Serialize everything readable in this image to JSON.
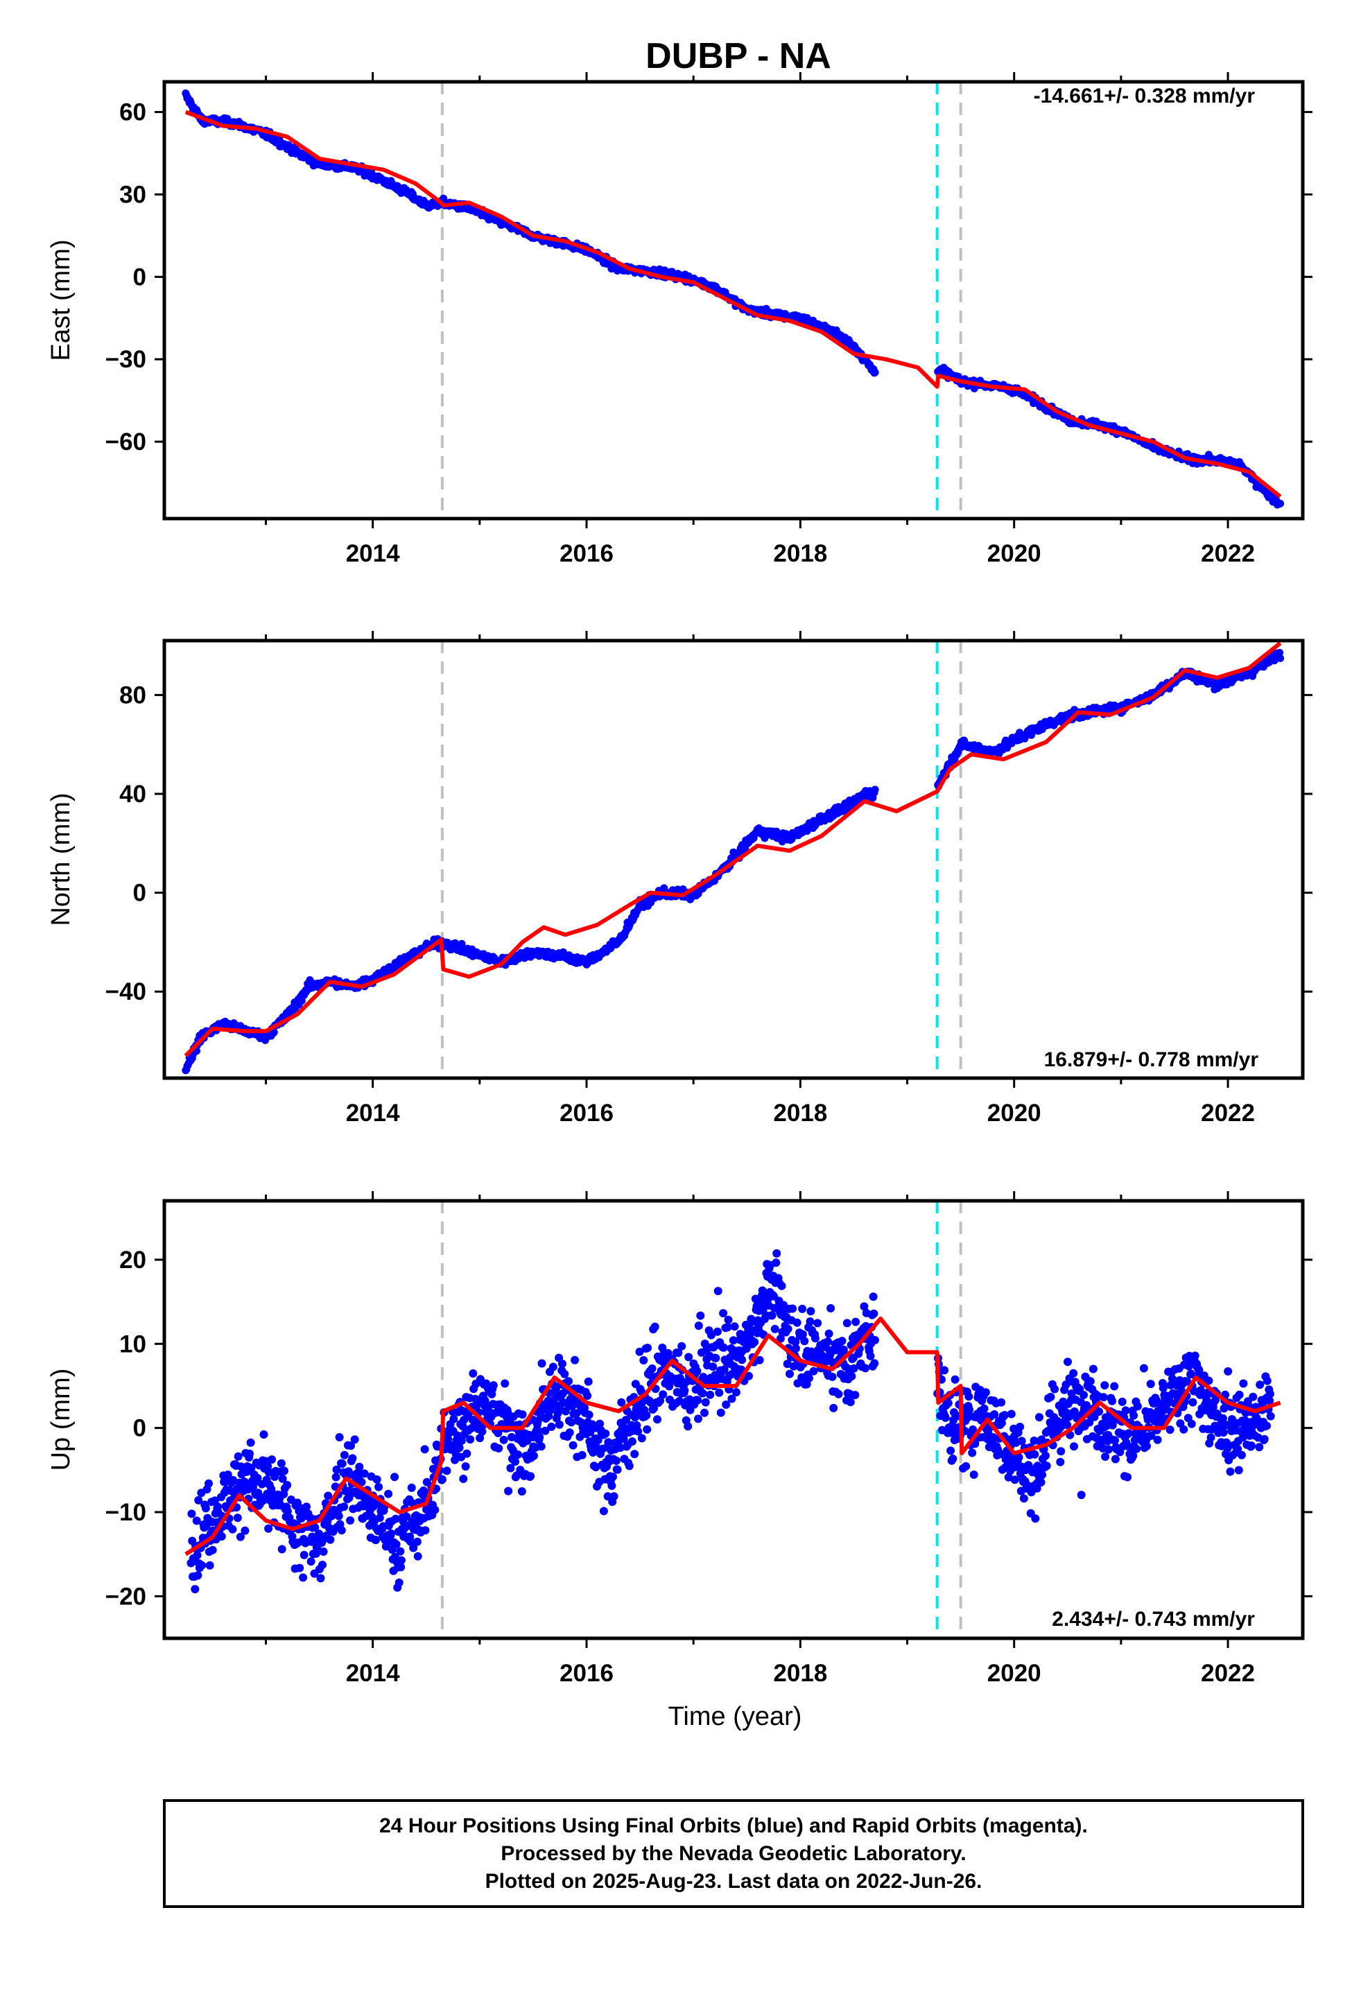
{
  "chart_title": "DUBP - NA",
  "xlabel": "Time (year)",
  "footer": {
    "line1": "24 Hour Positions Using Final Orbits (blue) and Rapid Orbits (magenta).",
    "line2": "Processed by the Nevada Geodetic Laboratory.",
    "line3": "Plotted on 2025-Aug-23. Last data on 2022-Jun-26."
  },
  "colors": {
    "data": "#0000ff",
    "model": "#ff0000",
    "equipment_change": "#c0c0c0",
    "earthquake": "#00e5ee",
    "frame": "#000000"
  },
  "chart_data": [
    {
      "type": "scatter",
      "component": "east",
      "ylabel": "East (mm)",
      "rate_label": "-14.661+/- 0.328 mm/yr",
      "xlim": [
        2012.05,
        2022.7
      ],
      "ylim": [
        -88,
        71
      ],
      "xticks": [
        2014,
        2016,
        2018,
        2020,
        2022
      ],
      "xtick_labels": [
        "2014",
        "2016",
        "2018",
        "2020",
        "2022"
      ],
      "yticks": [
        60,
        30,
        0,
        -30,
        -60
      ],
      "ytick_labels": [
        "60",
        "30",
        "0",
        "−30",
        "−60"
      ],
      "gaps": [
        [
          2018.7,
          2019.28
        ]
      ],
      "data_x": [
        2012.25,
        2012.4,
        2012.7,
        2013.0,
        2013.3,
        2013.5,
        2013.8,
        2014.0,
        2014.3,
        2014.5,
        2014.65,
        2014.9,
        2015.2,
        2015.5,
        2015.8,
        2016.0,
        2016.3,
        2016.6,
        2016.9,
        2017.2,
        2017.5,
        2017.8,
        2018.0,
        2018.3,
        2018.5,
        2018.7,
        2019.28,
        2019.5,
        2019.7,
        2020.0,
        2020.3,
        2020.5,
        2020.8,
        2021.0,
        2021.3,
        2021.6,
        2021.9,
        2022.1,
        2022.3,
        2022.49
      ],
      "data_y": [
        66,
        57,
        56,
        52,
        45,
        41,
        40,
        37,
        31,
        26,
        27,
        25,
        20,
        15,
        12,
        10,
        3,
        2,
        0,
        -4,
        -12,
        -14,
        -15,
        -20,
        -25,
        -35,
        -33,
        -38,
        -39,
        -41,
        -47,
        -52,
        -54,
        -56,
        -62,
        -66,
        -67,
        -68,
        -76,
        -83
      ],
      "model_x": [
        2012.25,
        2012.6,
        2012.9,
        2013.2,
        2013.5,
        2013.8,
        2014.1,
        2014.4,
        2014.64,
        2014.66,
        2014.9,
        2015.2,
        2015.5,
        2015.8,
        2016.1,
        2016.4,
        2016.7,
        2017.0,
        2017.3,
        2017.6,
        2017.9,
        2018.2,
        2018.5,
        2018.8,
        2019.1,
        2019.28,
        2019.29,
        2019.5,
        2019.8,
        2020.1,
        2020.4,
        2020.7,
        2021.0,
        2021.3,
        2021.6,
        2021.9,
        2022.2,
        2022.49
      ],
      "model_y": [
        60,
        55,
        54,
        51,
        43,
        41,
        39,
        34,
        27,
        26,
        27,
        22,
        15,
        13,
        9,
        3,
        0,
        -2,
        -8,
        -14,
        -16,
        -20,
        -28,
        -30,
        -33,
        -40,
        -36,
        -38,
        -40,
        -41,
        -49,
        -54,
        -57,
        -60,
        -66,
        -68,
        -71,
        -80
      ]
    },
    {
      "type": "scatter",
      "component": "north",
      "ylabel": "North (mm)",
      "rate_label": "16.879+/- 0.778 mm/yr",
      "xlim": [
        2012.05,
        2022.7
      ],
      "ylim": [
        -75,
        102
      ],
      "xticks": [
        2014,
        2016,
        2018,
        2020,
        2022
      ],
      "xtick_labels": [
        "2014",
        "2016",
        "2018",
        "2020",
        "2022"
      ],
      "yticks": [
        80,
        40,
        0,
        -40
      ],
      "ytick_labels": [
        "80",
        "40",
        "0",
        "−40"
      ],
      "gaps": [
        [
          2018.7,
          2019.28
        ]
      ],
      "data_x": [
        2012.25,
        2012.4,
        2012.6,
        2012.8,
        2013.0,
        2013.2,
        2013.4,
        2013.6,
        2013.8,
        2014.0,
        2014.3,
        2014.5,
        2014.65,
        2014.9,
        2015.2,
        2015.5,
        2015.8,
        2016.0,
        2016.3,
        2016.5,
        2016.7,
        2017.0,
        2017.3,
        2017.6,
        2017.9,
        2018.2,
        2018.5,
        2018.6,
        2019.28,
        2019.5,
        2019.8,
        2020.1,
        2020.4,
        2020.7,
        2021.0,
        2021.3,
        2021.6,
        2021.9,
        2022.2,
        2022.49
      ],
      "data_y": [
        -71,
        -58,
        -53,
        -56,
        -58,
        -50,
        -38,
        -36,
        -38,
        -35,
        -27,
        -22,
        -20,
        -24,
        -28,
        -24,
        -26,
        -28,
        -20,
        -5,
        0,
        -1,
        10,
        25,
        22,
        30,
        36,
        40,
        43,
        60,
        57,
        64,
        70,
        73,
        75,
        80,
        89,
        84,
        89,
        97
      ],
      "model_x": [
        2012.25,
        2012.5,
        2012.8,
        2013.0,
        2013.3,
        2013.6,
        2013.9,
        2014.2,
        2014.64,
        2014.66,
        2014.9,
        2015.2,
        2015.4,
        2015.6,
        2015.8,
        2016.1,
        2016.4,
        2016.6,
        2016.9,
        2017.2,
        2017.6,
        2017.9,
        2018.2,
        2018.6,
        2018.9,
        2019.28,
        2019.4,
        2019.6,
        2019.9,
        2020.3,
        2020.6,
        2020.9,
        2021.3,
        2021.6,
        2021.9,
        2022.2,
        2022.49
      ],
      "model_y": [
        -66,
        -55,
        -56,
        -56,
        -49,
        -36,
        -38,
        -33,
        -19,
        -31,
        -34,
        -29,
        -20,
        -14,
        -17,
        -13,
        -5,
        0,
        -1,
        7,
        19,
        17,
        23,
        37,
        33,
        41,
        50,
        56,
        54,
        61,
        73,
        72,
        79,
        90,
        87,
        91,
        101
      ]
    },
    {
      "type": "scatter",
      "component": "up",
      "ylabel": "Up (mm)",
      "rate_label": "2.434+/- 0.743 mm/yr",
      "xlim": [
        2012.05,
        2022.7
      ],
      "ylim": [
        -25,
        27
      ],
      "xticks": [
        2014,
        2016,
        2018,
        2020,
        2022
      ],
      "xtick_labels": [
        "2014",
        "2016",
        "2018",
        "2020",
        "2022"
      ],
      "yticks": [
        20,
        10,
        0,
        -10,
        -20
      ],
      "ytick_labels": [
        "20",
        "10",
        "0",
        "−10",
        "−20"
      ],
      "gaps": [
        [
          2018.7,
          2019.28
        ]
      ],
      "data_x": [
        2012.3,
        2012.55,
        2012.8,
        2013.05,
        2013.3,
        2013.5,
        2013.75,
        2014.0,
        2014.25,
        2014.5,
        2014.7,
        2014.95,
        2015.2,
        2015.45,
        2015.7,
        2015.95,
        2016.2,
        2016.45,
        2016.7,
        2016.95,
        2017.2,
        2017.45,
        2017.7,
        2017.95,
        2018.2,
        2018.45,
        2018.65,
        2019.3,
        2019.5,
        2019.7,
        2019.95,
        2020.15,
        2020.4,
        2020.65,
        2020.9,
        2021.15,
        2021.4,
        2021.65,
        2021.9,
        2022.15,
        2022.4
      ],
      "data_y": [
        -14,
        -10,
        -6,
        -8,
        -12,
        -14,
        -5,
        -10,
        -14,
        -9,
        -2,
        3,
        1,
        -3,
        5,
        2,
        -5,
        2,
        7,
        4,
        8,
        8,
        17,
        10,
        9,
        7,
        12,
        4,
        -1,
        2,
        -2,
        -6,
        1,
        4,
        0,
        -1,
        2,
        6,
        1,
        0,
        2
      ],
      "model_x": [
        2012.25,
        2012.5,
        2012.75,
        2013.0,
        2013.25,
        2013.5,
        2013.75,
        2014.0,
        2014.25,
        2014.5,
        2014.64,
        2014.66,
        2014.85,
        2015.1,
        2015.4,
        2015.7,
        2016.0,
        2016.3,
        2016.55,
        2016.8,
        2017.1,
        2017.4,
        2017.7,
        2018.0,
        2018.3,
        2018.55,
        2018.75,
        2019.0,
        2019.28,
        2019.29,
        2019.5,
        2019.51,
        2019.75,
        2020.0,
        2020.3,
        2020.55,
        2020.8,
        2021.1,
        2021.4,
        2021.7,
        2022.0,
        2022.25,
        2022.49
      ],
      "model_y": [
        -15,
        -13,
        -8,
        -11,
        -12,
        -11,
        -6,
        -8,
        -10,
        -9,
        -4,
        2,
        3,
        0,
        0,
        6,
        3,
        2,
        4,
        8,
        5,
        5,
        11,
        8,
        7,
        10,
        13,
        9,
        9,
        3,
        5,
        -3,
        1,
        -3,
        -2,
        0,
        3,
        0,
        0,
        6,
        3,
        2,
        3
      ]
    }
  ],
  "equipment_change_lines": [
    2014.65,
    2019.5
  ],
  "earthquake_lines": [
    2019.28
  ]
}
